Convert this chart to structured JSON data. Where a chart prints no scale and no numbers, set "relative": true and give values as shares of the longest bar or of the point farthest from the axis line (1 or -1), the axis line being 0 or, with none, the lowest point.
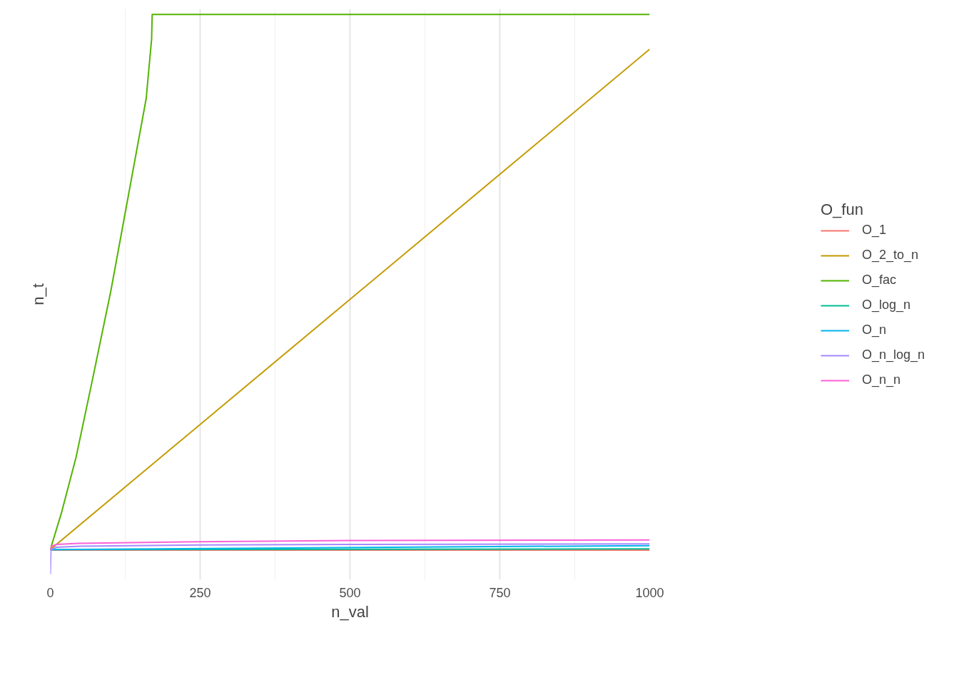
{
  "chart_data": {
    "type": "line",
    "xlabel": "n_val",
    "ylabel": "n_t",
    "legend_title": "O_fun",
    "relative": true,
    "xlim": [
      0,
      1000
    ],
    "xticks": [
      0,
      250,
      500,
      750,
      1000
    ],
    "grid": "x",
    "legend": "right",
    "tick_labels": "x",
    "line_style": "solid",
    "marker": "none",
    "series": [
      {
        "name": "O_1",
        "color": "#F8766D",
        "x": [
          0,
          1000
        ],
        "values": [
          0.043,
          0.043
        ]
      },
      {
        "name": "O_2_to_n",
        "color": "#C49A00",
        "x": [
          0,
          1000
        ],
        "values": [
          0.044,
          0.938
        ]
      },
      {
        "name": "O_fac",
        "color": "#53B400",
        "x": [
          0,
          19,
          43,
          71,
          101,
          130,
          160,
          169,
          170,
          1000
        ],
        "values": [
          0.044,
          0.111,
          0.209,
          0.351,
          0.506,
          0.675,
          0.85,
          0.956,
          1,
          1
        ]
      },
      {
        "name": "O_log_n",
        "color": "#00C094",
        "x": [
          0,
          1000
        ],
        "values": [
          0.044,
          0.045
        ]
      },
      {
        "name": "O_n",
        "color": "#00B6EB",
        "x": [
          0,
          1000
        ],
        "values": [
          0.044,
          0.051
        ]
      },
      {
        "name": "O_n_log_n",
        "color": "#A58AFF",
        "x": [
          0,
          1,
          10,
          50,
          250,
          500,
          1000
        ],
        "values": [
          0,
          0.044,
          0.048,
          0.05,
          0.052,
          0.053,
          0.054
        ]
      },
      {
        "name": "O_n_n",
        "color": "#FB61D7",
        "x": [
          0,
          2,
          10,
          47,
          250,
          500,
          1000
        ],
        "values": [
          0.044,
          0.05,
          0.053,
          0.055,
          0.058,
          0.06,
          0.061
        ]
      }
    ]
  }
}
